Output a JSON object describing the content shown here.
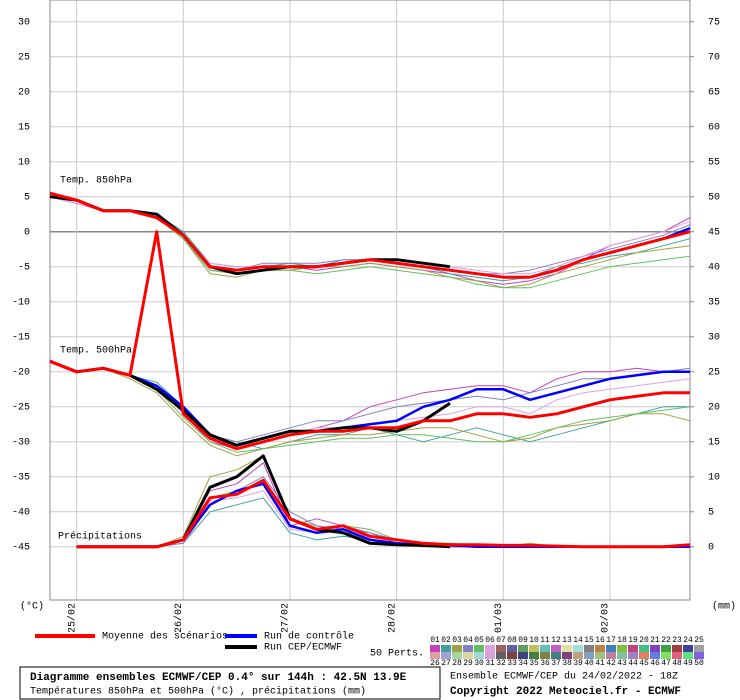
{
  "chart_data": {
    "type": "line",
    "x": [
      0.75,
      1,
      1.25,
      1.5,
      1.75,
      2,
      2.25,
      2.5,
      2.75,
      3,
      3.25,
      3.5,
      3.75,
      4,
      4.25,
      4.5,
      4.75,
      5,
      5.25,
      5.5,
      5.75,
      6,
      6.25,
      6.5,
      6.75
    ],
    "xlim": [
      0.75,
      6.75
    ],
    "xticks": [
      {
        "value": 1,
        "label": "25/02"
      },
      {
        "value": 2,
        "label": "26/02"
      },
      {
        "value": 3,
        "label": "27/02"
      },
      {
        "value": 4,
        "label": "28/02"
      },
      {
        "value": 5,
        "label": "01/03"
      },
      {
        "value": 6,
        "label": "02/03"
      }
    ],
    "ylim": [
      -52.6,
      33.1
    ],
    "yticks": [
      30,
      25,
      20,
      15,
      10,
      5,
      0,
      -5,
      -10,
      -15,
      -20,
      -25,
      -30,
      -35,
      -40,
      -45
    ],
    "y2lim": [
      -7.6,
      78.1
    ],
    "y2ticks": [
      75,
      70,
      65,
      60,
      55,
      50,
      45,
      40,
      35,
      30,
      25,
      20,
      15,
      10,
      5,
      0
    ],
    "y_unit": "(°C)",
    "y2_unit": "(mm)",
    "grid": true,
    "axes": {
      "t850": "y",
      "t500": "y",
      "precip": "y2"
    },
    "annotations": [
      "Temp. 850hPa",
      "Temp. 500hPa",
      "Précipitations"
    ],
    "series": [
      {
        "name": "Moyenne des scénarios",
        "color": "#ff0000",
        "t850": [
          5.5,
          4.5,
          3,
          3,
          2,
          -0.5,
          -5,
          -5.5,
          -5,
          -5,
          -5,
          -4.5,
          -4,
          -4.5,
          -5,
          -5.5,
          -6,
          -6.5,
          -6.5,
          -5.5,
          -4,
          -3,
          -2,
          -1,
          0
        ],
        "t500": [
          -18.5,
          -20,
          -19.5,
          -20.5,
          0,
          -26,
          -29.5,
          -31,
          -30,
          -29,
          -28.5,
          -28.5,
          -28,
          -28,
          -27,
          -27,
          -26,
          -26,
          -26.5,
          -26,
          -25,
          -24,
          -23.5,
          -23,
          -23
        ],
        "precip": [
          null,
          0,
          0,
          0,
          0,
          1,
          7,
          7.5,
          9.5,
          4,
          2.5,
          3,
          1.5,
          1,
          0.5,
          0.3,
          0.3,
          0.2,
          0.2,
          0.1,
          0,
          0,
          0,
          0,
          0.3
        ]
      },
      {
        "name": "Run de contrôle",
        "color": "#0000ff",
        "t850": [
          5.5,
          4.5,
          3,
          3,
          2,
          -0.5,
          -5,
          -5.5,
          -5,
          -5,
          -5,
          -4.5,
          -4,
          -4.5,
          -5,
          -5.5,
          -6,
          -6.5,
          -6.5,
          -5.5,
          -4,
          -3,
          -2,
          -1,
          0.5
        ],
        "t500": [
          -18.5,
          -20,
          -19.5,
          -20.5,
          -22,
          -25,
          -29,
          -30.5,
          -29.5,
          -28.5,
          -28.5,
          -28,
          -27.5,
          -27,
          -25,
          -24,
          -22.5,
          -22.5,
          -24,
          -23,
          -22,
          -21,
          -20.5,
          -20,
          -20
        ],
        "precip": [
          null,
          0,
          0,
          0,
          0,
          1,
          6,
          8,
          9,
          3,
          2,
          2.5,
          1,
          0.5,
          0.3,
          0.2,
          0,
          0,
          0,
          0,
          0,
          0,
          0,
          0,
          0
        ]
      },
      {
        "name": "Run CEP/ECMWF",
        "color": "#000000",
        "t850": [
          5,
          4.5,
          3,
          3,
          2.5,
          -0.5,
          -5,
          -6,
          -5.5,
          -5,
          -5,
          -4.5,
          -4,
          -4,
          -4.5,
          -5,
          null,
          null,
          null,
          null,
          null,
          null,
          null,
          null,
          null
        ],
        "t500": [
          -18.5,
          -20,
          -19.5,
          -20.5,
          -22.5,
          -25.5,
          -29,
          -30.5,
          -29.5,
          -28.5,
          -28.5,
          -28,
          -28,
          -28.5,
          -27,
          -24.5,
          null,
          null,
          null,
          null,
          null,
          null,
          null,
          null,
          null
        ],
        "precip": [
          null,
          0,
          0,
          0,
          0,
          1,
          8.5,
          10,
          13,
          4,
          2.5,
          2,
          0.5,
          0.3,
          0.2,
          0,
          null,
          null,
          null,
          null,
          null,
          null,
          null,
          null,
          null
        ]
      }
    ],
    "perturbations_label": "50 Perts.",
    "perturbations": [
      {
        "id": "01",
        "color": "#c040c0",
        "t850": [
          5,
          4,
          3,
          3,
          2,
          -1,
          -5.5,
          -6,
          -5.5,
          -5,
          -5.5,
          -5,
          -4.5,
          -5,
          -5.5,
          -6,
          -7,
          -7.5,
          -7,
          -6,
          -4,
          -2,
          -1,
          0,
          2
        ],
        "t500": [
          -18.5,
          -20,
          -19.5,
          -20.5,
          -22,
          -26,
          -30,
          -31,
          -30,
          -29,
          -28,
          -27,
          -25,
          -24,
          -23,
          -22.5,
          -22,
          -22,
          -23,
          -21,
          -20,
          -20,
          -19.5,
          -20,
          -20
        ],
        "precip": [
          null,
          0,
          0,
          0,
          0,
          1,
          8,
          9,
          12,
          3,
          4,
          3,
          2,
          0.5,
          0,
          0,
          0,
          0,
          0,
          0,
          0,
          0,
          0,
          0,
          0
        ]
      },
      {
        "id": "02",
        "color": "#40a0a0",
        "t850": [
          5,
          4.5,
          3,
          3,
          2.5,
          0,
          -4.5,
          -5,
          -5,
          -4.5,
          -5,
          -4,
          -4,
          -4.5,
          -5,
          -6,
          -6.5,
          -7,
          -6.5,
          -5,
          -4.5,
          -3.5,
          -3,
          -2,
          -1
        ],
        "t500": [
          -18.5,
          -20,
          -19.5,
          -20.5,
          -21.5,
          -25,
          -29,
          -30,
          -31,
          -30,
          -29,
          -29,
          -28,
          -29,
          -30,
          -29,
          -28,
          -29,
          -30,
          -29,
          -28,
          -27,
          -26,
          -25,
          -25
        ],
        "precip": [
          null,
          0,
          0,
          0,
          0,
          0.5,
          5,
          6,
          7,
          2,
          1,
          1.5,
          1,
          0.5,
          0.3,
          0,
          0,
          0,
          0,
          0,
          0,
          0,
          0,
          0,
          0
        ]
      },
      {
        "id": "03",
        "color": "#a0a040",
        "t850": [
          5.5,
          4.5,
          3,
          3,
          2,
          -1,
          -6,
          -6.5,
          -5.5,
          -5.5,
          -5,
          -5,
          -4.5,
          -5,
          -5.5,
          -6.5,
          -7,
          -8,
          -7.5,
          -6,
          -5,
          -4,
          -3,
          -2.5,
          -2
        ],
        "t500": [
          -18.5,
          -20,
          -19.5,
          -21,
          -23,
          -27,
          -30.5,
          -32,
          -31,
          -30,
          -29.5,
          -29,
          -29,
          -28.5,
          -28,
          -28,
          -29,
          -30,
          -29.5,
          -28,
          -27.5,
          -27,
          -26,
          -26,
          -27
        ],
        "precip": [
          null,
          0,
          0,
          0,
          0,
          1.5,
          10,
          11,
          13,
          4,
          3,
          2,
          1,
          0.5,
          0.5,
          0.3,
          0,
          0,
          0.5,
          0,
          0,
          0,
          0,
          0,
          0
        ]
      },
      {
        "id": "04",
        "color": "#8080c0",
        "t850": [
          5,
          4,
          3,
          3,
          2,
          -0.5,
          -5,
          -5.5,
          -4.5,
          -4.5,
          -4.5,
          -4,
          -4,
          -4.5,
          -5,
          -5.5,
          -6,
          -6,
          -5.5,
          -4.5,
          -3.5,
          -2.5,
          -1.5,
          -0.5,
          1
        ],
        "t500": [
          -18.5,
          -20,
          -19.5,
          -20.5,
          -22,
          -25.5,
          -29,
          -30,
          -29,
          -28,
          -27,
          -27,
          -26,
          -25,
          -24.5,
          -24,
          -23.5,
          -24,
          -23,
          -22,
          -21,
          -21,
          -20.5,
          -20,
          -19.5
        ],
        "precip": [
          null,
          0,
          0,
          0,
          0,
          0.5,
          6,
          8,
          10,
          5,
          3,
          2.5,
          2,
          1,
          0.5,
          0,
          0,
          0,
          0,
          0,
          0,
          0,
          0,
          0,
          0
        ]
      },
      {
        "id": "05",
        "color": "#60c060",
        "t850": [
          5,
          4.5,
          3,
          3,
          2,
          -1,
          -5.5,
          -6,
          -5.5,
          -5.5,
          -6,
          -5.5,
          -5,
          -5.5,
          -6,
          -6.5,
          -7.5,
          -8,
          -8,
          -7,
          -6,
          -5,
          -4.5,
          -4,
          -3.5
        ],
        "t500": [
          -18.5,
          -20,
          -19.5,
          -20.5,
          -22.5,
          -26.5,
          -30,
          -31.5,
          -31,
          -30.5,
          -30,
          -29.5,
          -29.5,
          -29,
          -29,
          -29.5,
          -30,
          -30,
          -29,
          -28,
          -27,
          -26.5,
          -26,
          -25.5,
          -25
        ],
        "precip": [
          null,
          0,
          0,
          0,
          0,
          1,
          7,
          8,
          9,
          3,
          2,
          3,
          2.5,
          1,
          0.5,
          0.5,
          0.3,
          0,
          0,
          0,
          0,
          0,
          0,
          0,
          0
        ]
      },
      {
        "id": "06",
        "color": "#e0a0e0",
        "t850": [
          5,
          4,
          3,
          3,
          2,
          -0.5,
          -4.5,
          -5,
          -5,
          -5,
          -5,
          -4.5,
          -4,
          -4,
          -4.5,
          -5,
          -5.5,
          -6,
          -6,
          -5,
          -3.5,
          -2,
          -1,
          0,
          1.5
        ],
        "t500": [
          -18.5,
          -20,
          -19.5,
          -20.5,
          -22,
          -26,
          -29.5,
          -30.5,
          -30,
          -29,
          -28,
          -28,
          -27.5,
          -27,
          -26.5,
          -26,
          -25,
          -25,
          -26,
          -24,
          -23,
          -22.5,
          -22,
          -21.5,
          -21
        ],
        "precip": [
          null,
          0,
          0,
          0,
          0,
          1,
          6.5,
          7,
          8,
          2.5,
          2,
          2,
          1.5,
          0.5,
          0.3,
          0.3,
          0,
          0,
          0,
          0,
          0,
          0,
          0,
          0,
          0
        ]
      },
      {
        "id": "07",
        "color": "#a06060"
      },
      {
        "id": "08",
        "color": "#6060a0"
      },
      {
        "id": "09",
        "color": "#60a060"
      },
      {
        "id": "10",
        "color": "#c0c060"
      },
      {
        "id": "11",
        "color": "#60c0c0"
      },
      {
        "id": "12",
        "color": "#c060c0"
      },
      {
        "id": "13",
        "color": "#e0e0a0"
      },
      {
        "id": "14",
        "color": "#a0e0e0"
      },
      {
        "id": "15",
        "color": "#808080"
      },
      {
        "id": "16",
        "color": "#c08040"
      },
      {
        "id": "17",
        "color": "#4080c0"
      },
      {
        "id": "18",
        "color": "#80c040"
      },
      {
        "id": "19",
        "color": "#c04080"
      },
      {
        "id": "20",
        "color": "#40c080"
      },
      {
        "id": "21",
        "color": "#8040c0"
      },
      {
        "id": "22",
        "color": "#40a040"
      },
      {
        "id": "23",
        "color": "#a04040"
      },
      {
        "id": "24",
        "color": "#4040a0"
      },
      {
        "id": "25",
        "color": "#a0a0a0"
      },
      {
        "id": "26",
        "color": "#d8a0a0"
      },
      {
        "id": "27",
        "color": "#a0a0d8"
      },
      {
        "id": "28",
        "color": "#a0d8a0"
      },
      {
        "id": "29",
        "color": "#d8d8a0"
      },
      {
        "id": "30",
        "color": "#a0d8d8"
      },
      {
        "id": "31",
        "color": "#d8a0d8"
      },
      {
        "id": "32",
        "color": "#606060"
      },
      {
        "id": "33",
        "color": "#804040"
      },
      {
        "id": "34",
        "color": "#404080"
      },
      {
        "id": "35",
        "color": "#408040"
      },
      {
        "id": "36",
        "color": "#808040"
      },
      {
        "id": "37",
        "color": "#408080"
      },
      {
        "id": "38",
        "color": "#804080"
      },
      {
        "id": "39",
        "color": "#c0a080"
      },
      {
        "id": "40",
        "color": "#80a0c0"
      },
      {
        "id": "41",
        "color": "#a0c080"
      },
      {
        "id": "42",
        "color": "#c080a0"
      },
      {
        "id": "43",
        "color": "#80c0a0"
      },
      {
        "id": "44",
        "color": "#a080c0"
      },
      {
        "id": "45",
        "color": "#e08060"
      },
      {
        "id": "46",
        "color": "#6080e0"
      },
      {
        "id": "47",
        "color": "#80e060"
      },
      {
        "id": "48",
        "color": "#e06080"
      },
      {
        "id": "49",
        "color": "#60e080"
      },
      {
        "id": "50",
        "color": "#8060e0"
      }
    ]
  },
  "footer": {
    "title": "Diagramme ensembles ECMWF/CEP 0.4° sur 144h : 42.5N 13.9E",
    "subtitle": "Températures 850hPa et 500hPa (°C) , précipitations (mm)",
    "run": "Ensemble ECMWF/CEP du 24/02/2022 - 18Z",
    "copyright": "Copyright 2022 Meteociel.fr - ECMWF"
  }
}
